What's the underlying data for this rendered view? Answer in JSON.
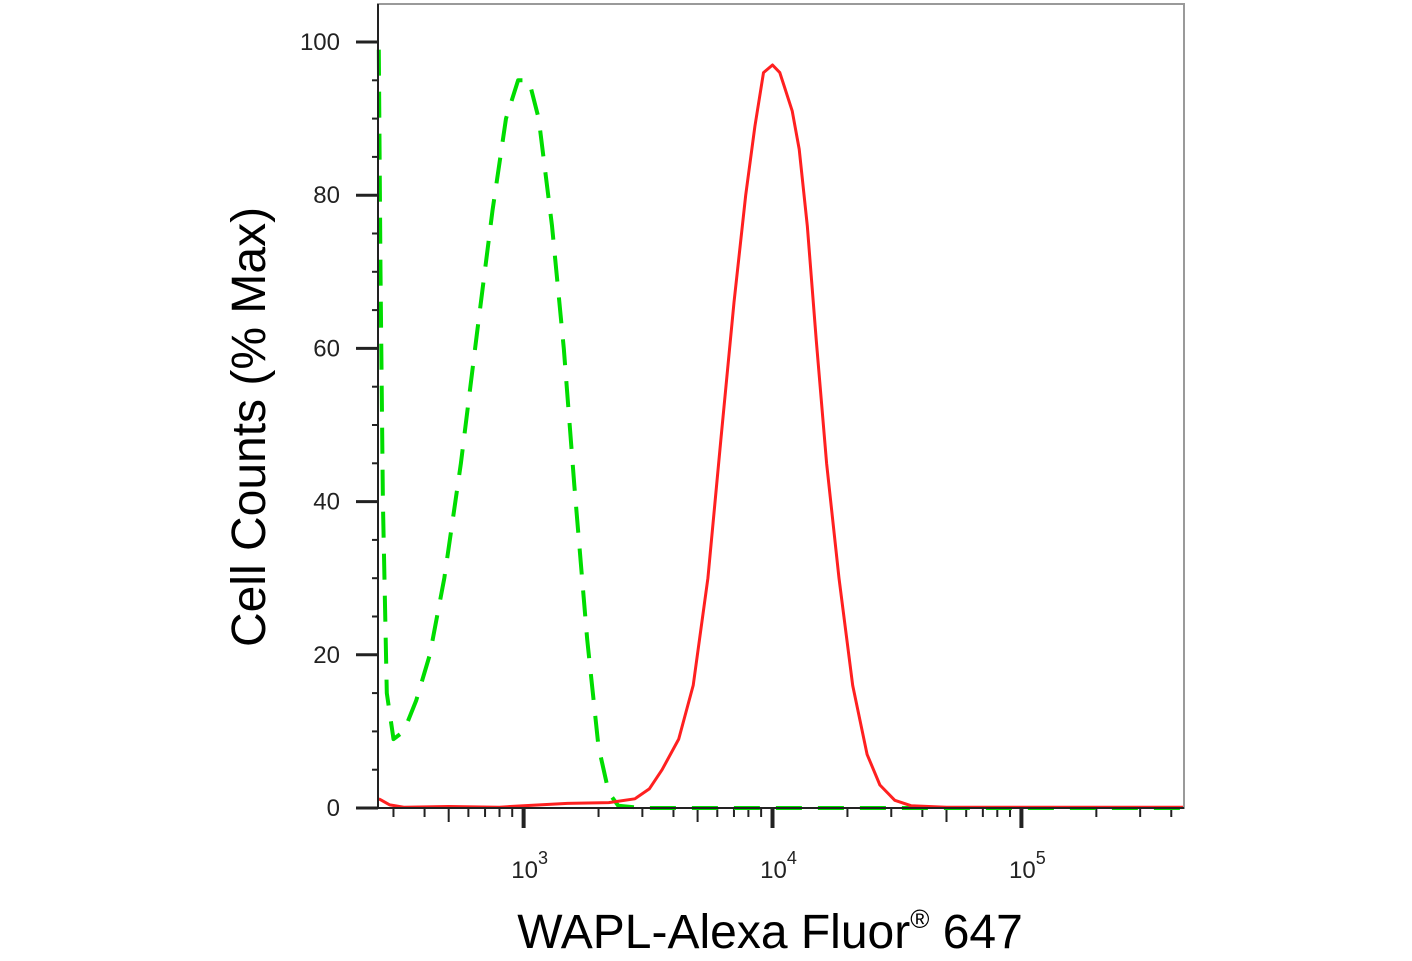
{
  "chart_data": {
    "type": "line",
    "xlabel": "WAPL-Alexa Fluor",
    "xlabel_superscript": "®",
    "xlabel_suffix": " 647",
    "ylabel": "Cell Counts (% Max)",
    "x_scale": "log",
    "xlim": [
      260,
      450000
    ],
    "ylim": [
      0,
      100
    ],
    "y_ticks": [
      0,
      20,
      40,
      60,
      80,
      100
    ],
    "x_major_ticks": [
      {
        "value": 1000,
        "base": "10",
        "exp": "3"
      },
      {
        "value": 10000,
        "base": "10",
        "exp": "4"
      },
      {
        "value": 100000,
        "base": "10",
        "exp": "5"
      }
    ],
    "grid": false,
    "series": [
      {
        "color": "#00dd00",
        "style": "dashed",
        "points": [
          [
            262,
            99
          ],
          [
            266,
            70
          ],
          [
            272,
            40
          ],
          [
            282,
            15
          ],
          [
            300,
            9
          ],
          [
            330,
            10
          ],
          [
            370,
            14
          ],
          [
            420,
            20
          ],
          [
            480,
            30
          ],
          [
            560,
            45
          ],
          [
            650,
            62
          ],
          [
            750,
            78
          ],
          [
            850,
            90
          ],
          [
            950,
            95
          ],
          [
            1050,
            95
          ],
          [
            1150,
            90
          ],
          [
            1300,
            76
          ],
          [
            1450,
            60
          ],
          [
            1600,
            42
          ],
          [
            1800,
            22
          ],
          [
            2000,
            8
          ],
          [
            2200,
            2
          ],
          [
            2400,
            0.3
          ],
          [
            3000,
            0
          ],
          [
            10000,
            0
          ],
          [
            30000,
            0
          ],
          [
            100000,
            0
          ],
          [
            450000,
            0
          ]
        ]
      },
      {
        "color": "#ff2020",
        "style": "solid",
        "points": [
          [
            262,
            1.2
          ],
          [
            290,
            0.4
          ],
          [
            330,
            0.1
          ],
          [
            500,
            0.2
          ],
          [
            800,
            0.1
          ],
          [
            1000,
            0.3
          ],
          [
            1500,
            0.6
          ],
          [
            2200,
            0.7
          ],
          [
            2800,
            1.2
          ],
          [
            3200,
            2.5
          ],
          [
            3600,
            5
          ],
          [
            4200,
            9
          ],
          [
            4800,
            16
          ],
          [
            5500,
            30
          ],
          [
            6200,
            48
          ],
          [
            7000,
            66
          ],
          [
            7800,
            80
          ],
          [
            8500,
            89
          ],
          [
            9200,
            96
          ],
          [
            10000,
            97
          ],
          [
            10700,
            96
          ],
          [
            11200,
            94
          ],
          [
            12000,
            91
          ],
          [
            12800,
            86
          ],
          [
            13800,
            76
          ],
          [
            15000,
            61
          ],
          [
            16500,
            45
          ],
          [
            18500,
            30
          ],
          [
            21000,
            16
          ],
          [
            24000,
            7
          ],
          [
            27000,
            3
          ],
          [
            31000,
            1
          ],
          [
            36000,
            0.3
          ],
          [
            50000,
            0.1
          ],
          [
            100000,
            0.1
          ],
          [
            450000,
            0.1
          ]
        ]
      }
    ]
  }
}
